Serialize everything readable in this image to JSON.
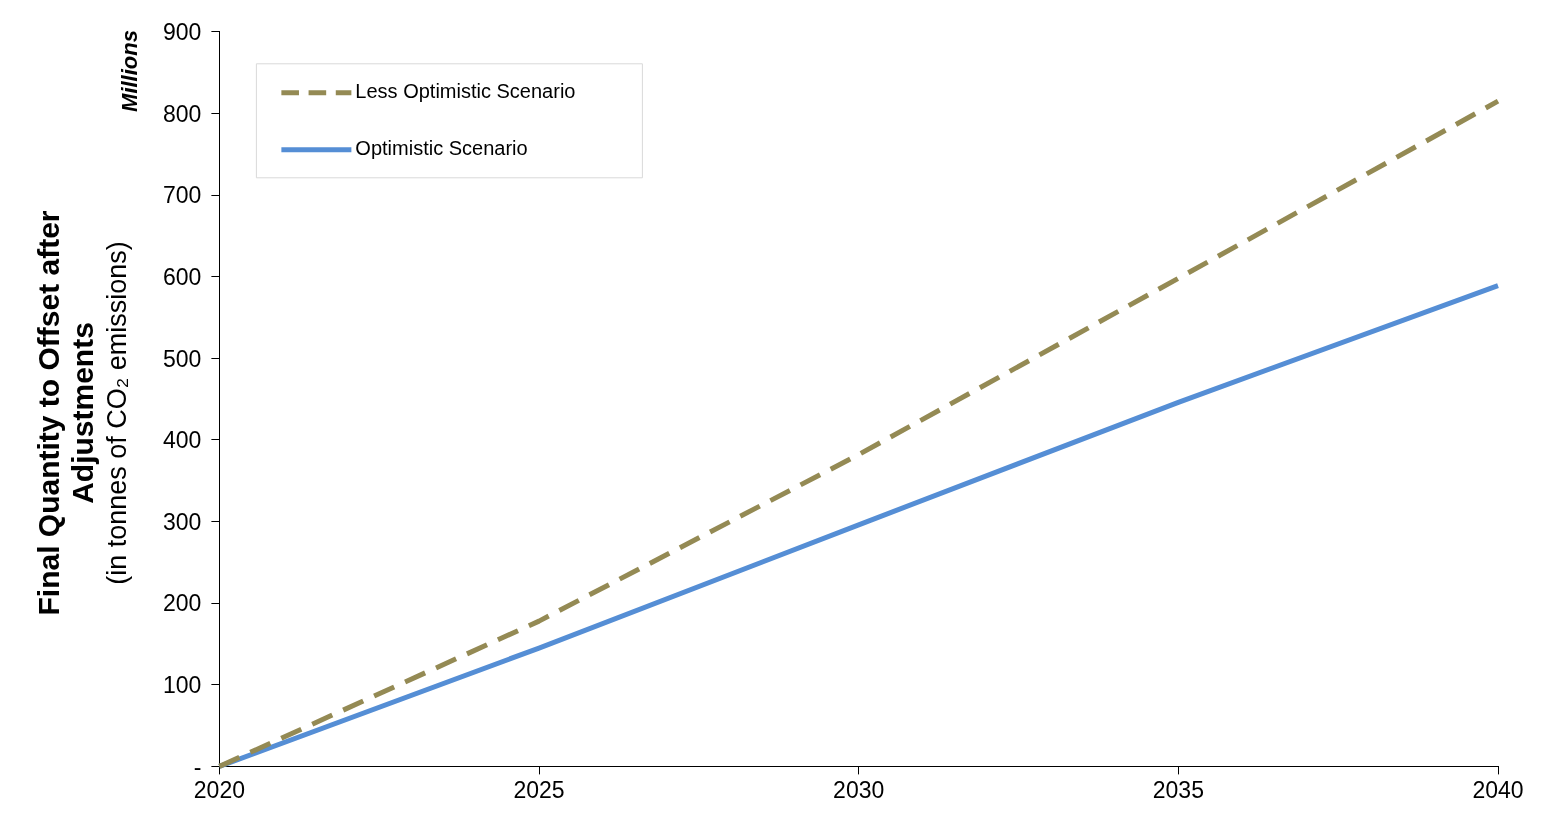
{
  "chart_data": {
    "type": "line",
    "ylabel": "Final Quantity to Offset after Adjustments",
    "annotations": [
      "(in tonnes of CO₂ emissions)",
      "Millions"
    ],
    "x": [
      2020,
      2025,
      2030,
      2035,
      2040
    ],
    "xlim": [
      2020,
      2040
    ],
    "xticks": [
      2020,
      2025,
      2030,
      2035,
      2040
    ],
    "ylim": [
      0,
      900
    ],
    "yticks": [
      {
        "value": 0,
        "label": "-"
      },
      100,
      200,
      300,
      400,
      500,
      600,
      700,
      800,
      900
    ],
    "grid": false,
    "legend": "top left",
    "marker": "none",
    "series": [
      {
        "name": "Less Optimistic Scenario",
        "color": "#948a54",
        "line_style": "dashed",
        "values": [
          0,
          178,
          382,
          598,
          815
        ]
      },
      {
        "name": "Optimistic Scenario",
        "color": "#558ed5",
        "line_style": "solid",
        "values": [
          0,
          145,
          296,
          446,
          589
        ]
      }
    ]
  }
}
